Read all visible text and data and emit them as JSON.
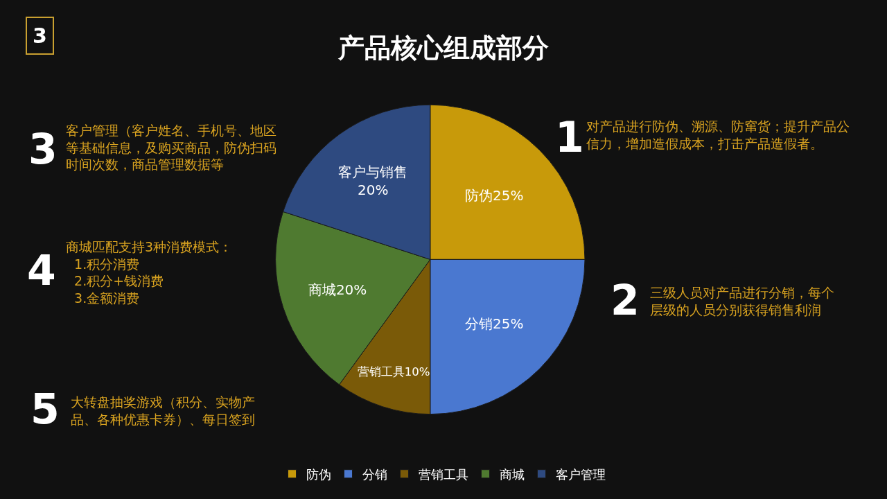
{
  "chart_data": {
    "type": "pie",
    "title": "产品核心组成部分",
    "categories": [
      "防伪",
      "分销",
      "营销工具",
      "商城",
      "客户管理"
    ],
    "values": [
      25,
      25,
      10,
      20,
      20
    ],
    "value_labels": [
      "防伪25%",
      "分销25%",
      "营销工具10%",
      "商城20%",
      "客户与销售\n20%"
    ],
    "colors": [
      "#c89a0a",
      "#4a78d0",
      "#7a5a08",
      "#4f7a30",
      "#2e4a80"
    ],
    "legend": "bottom",
    "annotations": [
      "3",
      "1",
      "对产品进行防伪、溯源、防窜货；提升产品公信力，增加造假成本，打击产品造假者。",
      "2",
      "三级人员对产品进行分销，每个层级的人员分别获得销售利润",
      "3",
      "客户管理（客户姓名、手机号、地区等基础信息，及购买商品，防伪扫码时间次数，商品管理数据等",
      "4",
      "商城匹配支持3种消费模式：\n  1.积分消费\n  2.积分+钱消费\n  3.金额消费",
      "5",
      "大转盘抽奖游戏（积分、实物产品、各种优惠卡券）、每日签到"
    ]
  }
}
